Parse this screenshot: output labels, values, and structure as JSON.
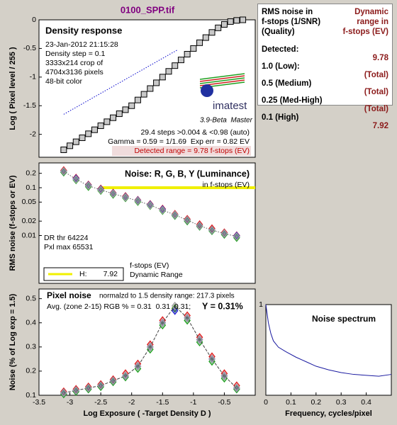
{
  "title": "0100_SPP.tif",
  "results": {
    "header_left": [
      "RMS noise in",
      "f-stops (1/SNR)",
      "(Quality)"
    ],
    "header_right": [
      "Dynamic",
      "range in",
      "f-stops (EV)"
    ],
    "rows": [
      [
        "Detected:",
        "9.78"
      ],
      [
        "1.0  (Low):",
        "(Total)"
      ],
      [
        "0.5  (Medium)",
        "(Total)"
      ],
      [
        "0.25 (Med-High)",
        "(Total)"
      ],
      [
        "0.1  (High)",
        "7.92"
      ]
    ]
  },
  "chart_data": [
    {
      "type": "scatter",
      "title": "Density response",
      "y_label": "Log ( Pixel level / 255 )",
      "xlim": [
        -3.5,
        0
      ],
      "ylim": [
        -2.4,
        0
      ],
      "yticks": [
        -2,
        -1.5,
        -1,
        -0.5,
        0
      ],
      "annotations": [
        "23-Jan-2012 21:15:28",
        "Density step = 0.1",
        "3333x214 crop of",
        "4704x3136 pixels",
        "48-bit color",
        "imatest",
        "3.9-Beta  Master",
        "29.4 steps >0.004 & <0.98 (auto)",
        "Gamma = 0.59 = 1/1.69  Exp err = 0.82 EV",
        "Detected range = 9.78 f-stops (EV)"
      ],
      "series": [
        {
          "color": "#c8c8c8",
          "marker": "square",
          "line": "solid",
          "line_color": "#000000",
          "x": [
            -3.1,
            -3.0,
            -2.9,
            -2.8,
            -2.7,
            -2.6,
            -2.5,
            -2.4,
            -2.3,
            -2.2,
            -2.1,
            -2.0,
            -1.9,
            -1.8,
            -1.7,
            -1.6,
            -1.5,
            -1.4,
            -1.3,
            -1.2,
            -1.1,
            -1.0,
            -0.9,
            -0.8,
            -0.7,
            -0.6,
            -0.5,
            -0.4,
            -0.3,
            -0.2
          ],
          "values": [
            -2.27,
            -2.2,
            -2.13,
            -2.06,
            -1.99,
            -1.92,
            -1.85,
            -1.78,
            -1.71,
            -1.64,
            -1.57,
            -1.5,
            -1.4,
            -1.3,
            -1.2,
            -1.1,
            -1.0,
            -0.9,
            -0.8,
            -0.7,
            -0.6,
            -0.5,
            -0.4,
            -0.31,
            -0.22,
            -0.14,
            -0.08,
            -0.03,
            -0.01,
            0
          ]
        },
        {
          "line": "dotted",
          "line_color": "#0000cc",
          "x": [
            -3.1,
            -1.25
          ],
          "values": [
            -1.65,
            -0.52
          ]
        }
      ]
    },
    {
      "type": "scatter",
      "title": "Noise: R, G, B, Y (Luminance)",
      "y_label": "RMS noise (f-stops or EV)",
      "log": true,
      "xlim": [
        -3.5,
        0
      ],
      "ylim": [
        0.001,
        0.33
      ],
      "yticks": [
        0.2,
        0.1,
        0.05,
        0.02,
        0.01
      ],
      "annotations": [
        "in f-stops (EV)",
        "DR thr 64224",
        "Pxl max 65531",
        "f-stops (EV)",
        "Dynamic Range"
      ],
      "ref_line": {
        "value": 0.1,
        "x": [
          -2.5,
          0
        ],
        "color": "#f0f000"
      },
      "legend": {
        "label": "H:",
        "value": 7.92,
        "color": "#f0f000"
      },
      "x": [
        -3.1,
        -2.9,
        -2.7,
        -2.5,
        -2.3,
        -2.1,
        -1.9,
        -1.7,
        -1.5,
        -1.3,
        -1.1,
        -0.9,
        -0.7,
        -0.5,
        -0.3
      ],
      "series": [
        {
          "color": "#e02020",
          "marker": "diamond",
          "values": [
            0.23,
            0.16,
            0.115,
            0.095,
            0.078,
            0.066,
            0.055,
            0.045,
            0.036,
            0.028,
            0.022,
            0.017,
            0.014,
            0.0115,
            0.01
          ]
        },
        {
          "color": "#20a020",
          "marker": "diamond",
          "values": [
            0.21,
            0.145,
            0.105,
            0.087,
            0.072,
            0.061,
            0.051,
            0.042,
            0.033,
            0.026,
            0.02,
            0.0155,
            0.0125,
            0.0105,
            0.009
          ]
        },
        {
          "color": "#2020d0",
          "marker": "diamond",
          "values": [
            0.22,
            0.155,
            0.112,
            0.092,
            0.076,
            0.064,
            0.054,
            0.044,
            0.035,
            0.027,
            0.021,
            0.016,
            0.013,
            0.011,
            0.0098
          ]
        },
        {
          "color": "#a0a0a0",
          "marker": "diamond",
          "line": "dotted",
          "line_color": "#606060",
          "values": [
            0.22,
            0.15,
            0.11,
            0.09,
            0.075,
            0.063,
            0.053,
            0.043,
            0.034,
            0.027,
            0.021,
            0.016,
            0.013,
            0.011,
            0.0095
          ]
        }
      ]
    },
    {
      "type": "scatter",
      "title": "Pixel noise",
      "y_label": "Noise (% of Log exp = 1.5)",
      "x_label": "Log Exposure ( -Target Density D )",
      "xlim": [
        -3.5,
        0
      ],
      "xticks": [
        -3.5,
        -3,
        -2.5,
        -2,
        -1.5,
        -1,
        -0.5
      ],
      "ylim": [
        0.1,
        0.54
      ],
      "yticks": [
        0.1,
        0.2,
        0.3,
        0.4,
        0.5
      ],
      "annotations": [
        "normalzd to 1.5 density range: 217.3 pixels",
        "Avg. (zone 2-15) RGB % = 0.31  0.31  0.31;",
        "Y = 0.31%"
      ],
      "x": [
        -3.1,
        -2.9,
        -2.7,
        -2.5,
        -2.3,
        -2.1,
        -1.9,
        -1.7,
        -1.5,
        -1.3,
        -1.1,
        -0.9,
        -0.7,
        -0.5,
        -0.3
      ],
      "series": [
        {
          "color": "#e02020",
          "marker": "diamond",
          "values": [
            0.115,
            0.125,
            0.135,
            0.145,
            0.165,
            0.19,
            0.23,
            0.31,
            0.41,
            0.46,
            0.43,
            0.34,
            0.26,
            0.19,
            0.14
          ]
        },
        {
          "color": "#20a020",
          "marker": "diamond",
          "values": [
            0.105,
            0.115,
            0.125,
            0.135,
            0.155,
            0.175,
            0.21,
            0.29,
            0.39,
            0.46,
            0.41,
            0.32,
            0.24,
            0.17,
            0.125
          ]
        },
        {
          "color": "#2020d0",
          "marker": "diamond",
          "values": [
            0.11,
            0.12,
            0.13,
            0.14,
            0.16,
            0.18,
            0.22,
            0.3,
            0.4,
            0.45,
            0.42,
            0.33,
            0.25,
            0.18,
            0.13
          ]
        },
        {
          "color": "#a0a0a0",
          "marker": "diamond",
          "line": "dashed",
          "line_color": "#404040",
          "values": [
            0.11,
            0.12,
            0.13,
            0.14,
            0.16,
            0.18,
            0.22,
            0.3,
            0.4,
            0.47,
            0.42,
            0.33,
            0.25,
            0.18,
            0.13
          ]
        }
      ]
    },
    {
      "type": "line",
      "title": "Noise spectrum",
      "x_label": "Frequency, cycles/pixel",
      "xlim": [
        0,
        0.5
      ],
      "xticks": [
        0,
        0.1,
        0.2,
        0.3,
        0.4
      ],
      "ylim": [
        0,
        1
      ],
      "yticks": [
        1
      ],
      "x": [
        0,
        0.01,
        0.02,
        0.03,
        0.05,
        0.08,
        0.12,
        0.16,
        0.2,
        0.25,
        0.3,
        0.35,
        0.4,
        0.45,
        0.5
      ],
      "series": [
        {
          "line": "solid",
          "line_color": "#1a1aa0",
          "values": [
            1,
            0.8,
            0.68,
            0.6,
            0.53,
            0.48,
            0.42,
            0.37,
            0.32,
            0.28,
            0.25,
            0.23,
            0.22,
            0.21,
            0.23
          ]
        }
      ]
    }
  ]
}
